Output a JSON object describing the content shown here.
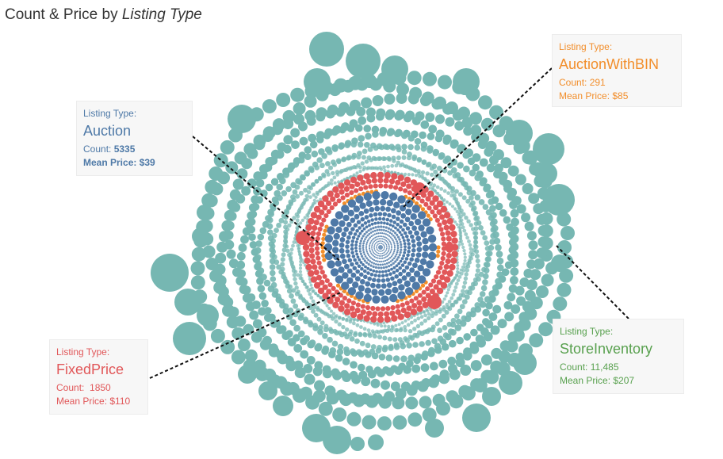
{
  "title": {
    "prefix": "Count & Price by ",
    "emphasis": "Listing Type"
  },
  "chart_data": {
    "type": "packed-bubble",
    "title": "Count & Price by Listing Type",
    "measure_size": "Price",
    "categories": [
      "Auction",
      "AuctionWithBIN",
      "FixedPrice",
      "StoreInventory"
    ],
    "series": [
      {
        "name": "Auction",
        "color": "#4e79a7",
        "count": 5335,
        "mean_price": 39
      },
      {
        "name": "AuctionWithBIN",
        "color": "#f28e2b",
        "count": 291,
        "mean_price": 85
      },
      {
        "name": "FixedPrice",
        "color": "#e15759",
        "count": 1850,
        "mean_price": 110
      },
      {
        "name": "StoreInventory",
        "color": "#76b7b2",
        "count": 11485,
        "mean_price": 207
      }
    ]
  },
  "annotations": {
    "auction": {
      "label": "Listing Type:",
      "type": "Auction",
      "count_label": "Count:",
      "count_value": "5335",
      "price_label": "Mean Price:",
      "price_value": "$39",
      "color": "#4e79a7"
    },
    "auction_with_bin": {
      "label": "Listing Type:",
      "type": "AuctionWithBIN",
      "count_label": "Count:",
      "count_value": "291",
      "price_label": "Mean Price:",
      "price_value": "$85",
      "color": "#f28e2b"
    },
    "fixed_price": {
      "label": "Listing Type:",
      "type": "FixedPrice",
      "count_label": "Count:",
      "count_value": "1850",
      "price_label": "Mean Price:",
      "price_value": "$110",
      "color": "#e15759"
    },
    "store_inventory": {
      "label": "Listing Type:",
      "type": "StoreInventory",
      "count_label": "Count:",
      "count_value": "11,485",
      "price_label": "Mean Price:",
      "price_value": "$207",
      "color": "#59a14f"
    }
  }
}
